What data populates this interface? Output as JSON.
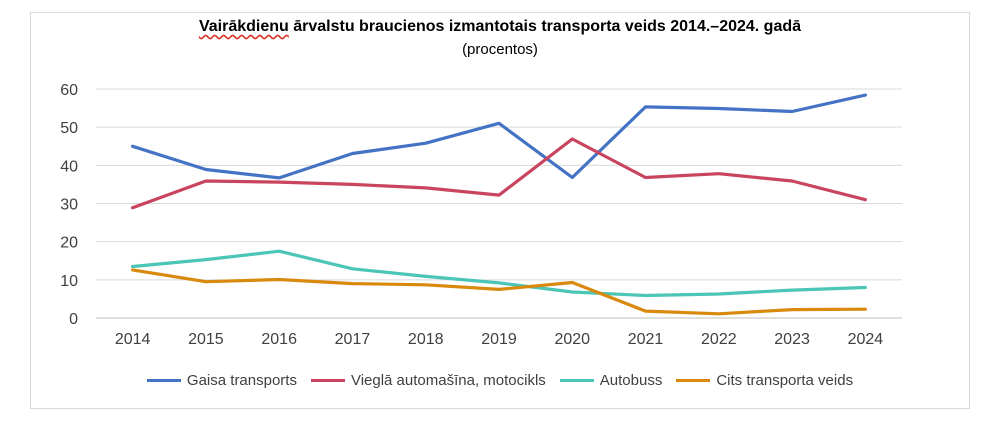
{
  "chart_data": {
    "type": "line",
    "title_first_word": "Vairākdienu",
    "title_rest": " ārvalstu braucienos izmantotais transporta veids 2014.–2024. gadā",
    "subtitle": "(procentos)",
    "xlabel": "",
    "ylabel": "",
    "ylim": [
      0,
      60
    ],
    "yticks": [
      "0",
      "10",
      "20",
      "30",
      "40",
      "50",
      "60"
    ],
    "grid": true,
    "legend_position": "bottom",
    "categories": [
      "2014",
      "2015",
      "2016",
      "2017",
      "2018",
      "2019",
      "2020",
      "2021",
      "2022",
      "2023",
      "2024"
    ],
    "series": [
      {
        "name": "Gaisa transports",
        "color": "#4472C4",
        "values": [
          45.0,
          38.9,
          36.7,
          43.1,
          45.8,
          51.0,
          36.8,
          55.3,
          54.9,
          54.1,
          58.4
        ]
      },
      {
        "name": "Vieglā automašīna, motocikls",
        "color": "#C9445E",
        "values": [
          28.9,
          35.9,
          35.6,
          35.0,
          34.1,
          32.2,
          46.9,
          36.8,
          37.8,
          35.9,
          31.0
        ]
      },
      {
        "name": "Autobuss",
        "color": "#4BC5B5",
        "values": [
          13.5,
          15.3,
          17.5,
          12.9,
          10.9,
          9.2,
          6.8,
          5.9,
          6.3,
          7.3,
          8.0
        ]
      },
      {
        "name": "Cits transporta veids",
        "color": "#D98A0E",
        "values": [
          12.6,
          9.5,
          10.1,
          9.0,
          8.7,
          7.5,
          9.3,
          1.8,
          1.1,
          2.2,
          2.3
        ]
      }
    ]
  }
}
